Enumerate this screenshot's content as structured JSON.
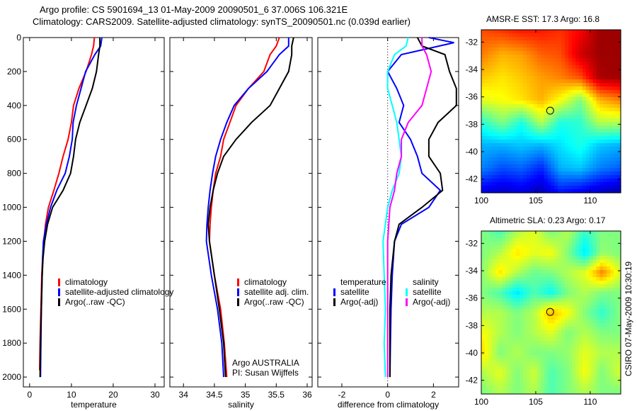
{
  "header": {
    "line1": "Argo profile: CS 5901694_13 01-May-2009 20090501_6 37.006S 106.321E",
    "line2": "Climatology: CARS2009. Satellite-adjusted climatology: synTS_20090501.nc (0.039d earlier)"
  },
  "credit": "CSIRO 07-May-2009 10:30:19",
  "colors": {
    "red": "#ff0000",
    "blue": "#0000ff",
    "black": "#000000",
    "cyan": "#00ffff",
    "magenta": "#ff00ff"
  },
  "chart_data": [
    {
      "type": "line",
      "xlabel": "temperature",
      "ylabel": "",
      "xlim": [
        -1.5,
        32.2
      ],
      "ylim": [
        2058,
        0
      ],
      "xticks": [
        0,
        10,
        20,
        30
      ],
      "yticks": [
        0,
        200,
        400,
        600,
        800,
        1000,
        1200,
        1400,
        1600,
        1800,
        2000
      ],
      "legend": [
        {
          "label": "climatology",
          "color": "#ff0000"
        },
        {
          "label": "satellite-adjusted climatology",
          "color": "#0000ff"
        },
        {
          "label": "Argo(..raw -QC)",
          "color": "#000000"
        }
      ],
      "series": [
        {
          "name": "climatology",
          "color": "#ff0000",
          "depth": [
            0,
            50,
            100,
            200,
            300,
            400,
            500,
            600,
            700,
            800,
            900,
            1000,
            1100,
            1200,
            1300,
            1400,
            1600,
            1800,
            1960
          ],
          "values": [
            15.5,
            15.3,
            14.8,
            13.5,
            11.8,
            10.5,
            10,
            9.2,
            8,
            7,
            5.8,
            4.5,
            3.8,
            3.4,
            3.1,
            2.9,
            2.7,
            2.5,
            2.4
          ]
        },
        {
          "name": "satellite-adjusted climatology",
          "color": "#0000ff",
          "depth": [
            0,
            50,
            100,
            200,
            300,
            400,
            500,
            600,
            700,
            800,
            900,
            1000,
            1100,
            1200,
            1300,
            1400,
            1600,
            1800,
            2000
          ],
          "values": [
            17.3,
            17,
            15.6,
            13.4,
            12.3,
            11.2,
            10.4,
            10.2,
            9.5,
            8.5,
            6.5,
            5,
            4,
            3.3,
            3.1,
            3,
            2.8,
            2.7,
            2.6
          ]
        },
        {
          "name": "Argo(..raw -QC)",
          "color": "#000000",
          "depth": [
            0,
            50,
            100,
            200,
            300,
            400,
            500,
            600,
            700,
            800,
            900,
            1000,
            1100,
            1200,
            1300,
            1400,
            1600,
            1800,
            2000
          ],
          "values": [
            16.8,
            16.8,
            16.5,
            16,
            15,
            13.5,
            12,
            11,
            10.5,
            9.8,
            8,
            5.5,
            4.3,
            3.6,
            3.2,
            3,
            2.8,
            2.6,
            2.5
          ]
        }
      ]
    },
    {
      "type": "line",
      "xlabel": "salinity",
      "ylabel": "",
      "xlim": [
        33.78,
        36.08
      ],
      "ylim": [
        2058,
        0
      ],
      "xticks": [
        34,
        34.5,
        35,
        35.5,
        36
      ],
      "legend": [
        {
          "label": "climatology",
          "color": "#ff0000"
        },
        {
          "label": "satellite adj. clim.",
          "color": "#0000ff"
        },
        {
          "label": "Argo(..raw -QC)",
          "color": "#000000"
        }
      ],
      "annotation": [
        "Argo AUSTRALIA",
        "PI: Susan Wijffels"
      ],
      "series": [
        {
          "name": "climatology",
          "color": "#ff0000",
          "depth": [
            0,
            50,
            100,
            200,
            300,
            400,
            500,
            600,
            700,
            800,
            900,
            1000,
            1100,
            1200,
            1400,
            1600,
            1800,
            2000
          ],
          "values": [
            35.55,
            35.5,
            35.4,
            35.3,
            35.05,
            34.85,
            34.75,
            34.65,
            34.6,
            34.52,
            34.48,
            34.45,
            34.43,
            34.42,
            34.5,
            34.6,
            34.66,
            34.7
          ]
        },
        {
          "name": "satellite adj. clim.",
          "color": "#0000ff",
          "depth": [
            0,
            50,
            100,
            200,
            300,
            400,
            500,
            600,
            700,
            800,
            900,
            1000,
            1100,
            1200,
            1400,
            1600,
            1800,
            2000
          ],
          "values": [
            35.7,
            35.7,
            35.55,
            35.35,
            35.05,
            34.82,
            34.7,
            34.6,
            34.52,
            34.47,
            34.43,
            34.4,
            34.38,
            34.37,
            34.45,
            34.55,
            34.62,
            34.65
          ]
        },
        {
          "name": "Argo(..raw -QC)",
          "color": "#000000",
          "depth": [
            0,
            50,
            100,
            200,
            300,
            400,
            500,
            600,
            700,
            800,
            900,
            1000,
            1100,
            1200,
            1400,
            1600,
            1800,
            2000
          ],
          "values": [
            35.78,
            35.75,
            35.75,
            35.7,
            35.55,
            35.4,
            35.1,
            34.85,
            34.65,
            34.55,
            34.48,
            34.43,
            34.4,
            34.42,
            34.5,
            34.58,
            34.65,
            34.68
          ]
        }
      ]
    },
    {
      "type": "line",
      "xlabel": "difference from climatology",
      "ylabel": "",
      "xlim": [
        -3.05,
        3.1
      ],
      "ylim": [
        2058,
        0
      ],
      "xticks": [
        -2,
        0,
        2
      ],
      "legend_headers": [
        "temperature",
        "salinity"
      ],
      "legend": [
        {
          "label": "satellite",
          "color": "#0000ff",
          "group": "temperature"
        },
        {
          "label": "Argo(-adj)",
          "color": "#000000",
          "group": "temperature"
        },
        {
          "label": "satellite",
          "color": "#00ffff",
          "group": "salinity"
        },
        {
          "label": "Argo(-adj)",
          "color": "#ff00ff",
          "group": "salinity"
        }
      ],
      "series": [
        {
          "name": "temperature satellite",
          "color": "#0000ff",
          "depth": [
            0,
            30,
            100,
            200,
            300,
            400,
            500,
            600,
            700,
            800,
            900,
            1000,
            1100,
            1200,
            1400,
            1600,
            1800,
            2000
          ],
          "values": [
            1.8,
            2.9,
            0.6,
            0,
            0.4,
            0.7,
            0.5,
            1,
            1.3,
            1.5,
            2.3,
            1.8,
            0.6,
            0.3,
            0.2,
            0.15,
            0.12,
            0.1
          ]
        },
        {
          "name": "temperature Argo(-adj)",
          "color": "#000000",
          "depth": [
            0,
            50,
            100,
            200,
            300,
            400,
            500,
            600,
            700,
            800,
            900,
            1000,
            1100,
            1200,
            1400,
            1600,
            2000
          ],
          "values": [
            1.3,
            1.5,
            2.5,
            2.7,
            3,
            3,
            2.2,
            1.8,
            1.8,
            2.3,
            2.4,
            1.5,
            0.5,
            0.3,
            0.15,
            0.1,
            0.1
          ]
        },
        {
          "name": "salinity satellite",
          "color": "#00ffff",
          "depth": [
            0,
            50,
            100,
            200,
            300,
            400,
            500,
            600,
            700,
            800,
            900,
            1000,
            1100,
            1200,
            1400,
            1600,
            1800,
            2000
          ],
          "values": [
            0.9,
            0.8,
            0.3,
            0,
            0,
            0.2,
            0.4,
            0.5,
            0.6,
            0.5,
            0.2,
            0,
            -0.1,
            -0.2,
            -0.15,
            -0.1,
            -0.15,
            -0.1
          ]
        },
        {
          "name": "salinity Argo(-adj)",
          "color": "#ff00ff",
          "depth": [
            0,
            50,
            100,
            200,
            300,
            400,
            500,
            600,
            700,
            800,
            900,
            1000,
            1200,
            1400,
            2000
          ],
          "values": [
            1.5,
            1.5,
            1.7,
            1.9,
            1.7,
            1.5,
            0.9,
            0.6,
            0.6,
            0.4,
            0.3,
            0.1,
            0,
            0,
            0
          ]
        }
      ]
    },
    {
      "type": "heatmap",
      "title": "AMSR-E SST: 17.3 Argo: 16.8",
      "xlim": [
        100,
        112.8
      ],
      "ylim": [
        -43,
        -31.1
      ],
      "xticks": [
        100,
        105,
        110
      ],
      "yticks": [
        -32,
        -34,
        -36,
        -38,
        -40,
        -42
      ],
      "marker": {
        "lon": 106.321,
        "lat": -37.006
      },
      "grid": [
        [
          0.8,
          0.82,
          0.85,
          0.85,
          0.83,
          0.88,
          0.97,
          0.97
        ],
        [
          0.75,
          0.7,
          0.72,
          0.78,
          0.8,
          0.92,
          0.97,
          0.97
        ],
        [
          0.68,
          0.65,
          0.68,
          0.72,
          0.75,
          0.8,
          0.96,
          0.97
        ],
        [
          0.6,
          0.62,
          0.65,
          0.7,
          0.62,
          0.5,
          0.7,
          0.75
        ],
        [
          0.42,
          0.5,
          0.4,
          0.55,
          0.4,
          0.42,
          0.55,
          0.55
        ],
        [
          0.3,
          0.3,
          0.32,
          0.3,
          0.35,
          0.4,
          0.32,
          0.3
        ],
        [
          0.25,
          0.2,
          0.22,
          0.16,
          0.3,
          0.32,
          0.25,
          0.22
        ],
        [
          0.1,
          0.08,
          0.1,
          0.06,
          0.15,
          0.12,
          0.08,
          0.05
        ]
      ]
    },
    {
      "type": "heatmap",
      "title": "Altimetric SLA: 0.23 Argo: 0.17",
      "xlim": [
        100,
        112.8
      ],
      "ylim": [
        -43,
        -31.1
      ],
      "xticks": [
        100,
        105,
        110
      ],
      "yticks": [
        -32,
        -34,
        -36,
        -38,
        -40,
        -42
      ],
      "marker": {
        "lon": 106.321,
        "lat": -37.006
      },
      "grid": [
        [
          0.5,
          0.45,
          0.55,
          0.6,
          0.5,
          0.55,
          0.42,
          0.5,
          0.5
        ],
        [
          0.5,
          0.55,
          0.65,
          0.6,
          0.62,
          0.5,
          0.35,
          0.52,
          0.5
        ],
        [
          0.52,
          0.65,
          0.55,
          0.48,
          0.5,
          0.55,
          0.6,
          0.75,
          0.6
        ],
        [
          0.5,
          0.45,
          0.35,
          0.45,
          0.38,
          0.5,
          0.55,
          0.5,
          0.5
        ],
        [
          0.55,
          0.55,
          0.5,
          0.55,
          0.7,
          0.62,
          0.5,
          0.42,
          0.5
        ],
        [
          0.62,
          0.55,
          0.5,
          0.55,
          0.6,
          0.5,
          0.55,
          0.5,
          0.5
        ],
        [
          0.65,
          0.5,
          0.55,
          0.5,
          0.5,
          0.52,
          0.6,
          0.55,
          0.55
        ],
        [
          0.55,
          0.6,
          0.5,
          0.58,
          0.45,
          0.5,
          0.62,
          0.5,
          0.58
        ],
        [
          0.5,
          0.55,
          0.5,
          0.55,
          0.45,
          0.5,
          0.55,
          0.5,
          0.5
        ]
      ]
    }
  ]
}
